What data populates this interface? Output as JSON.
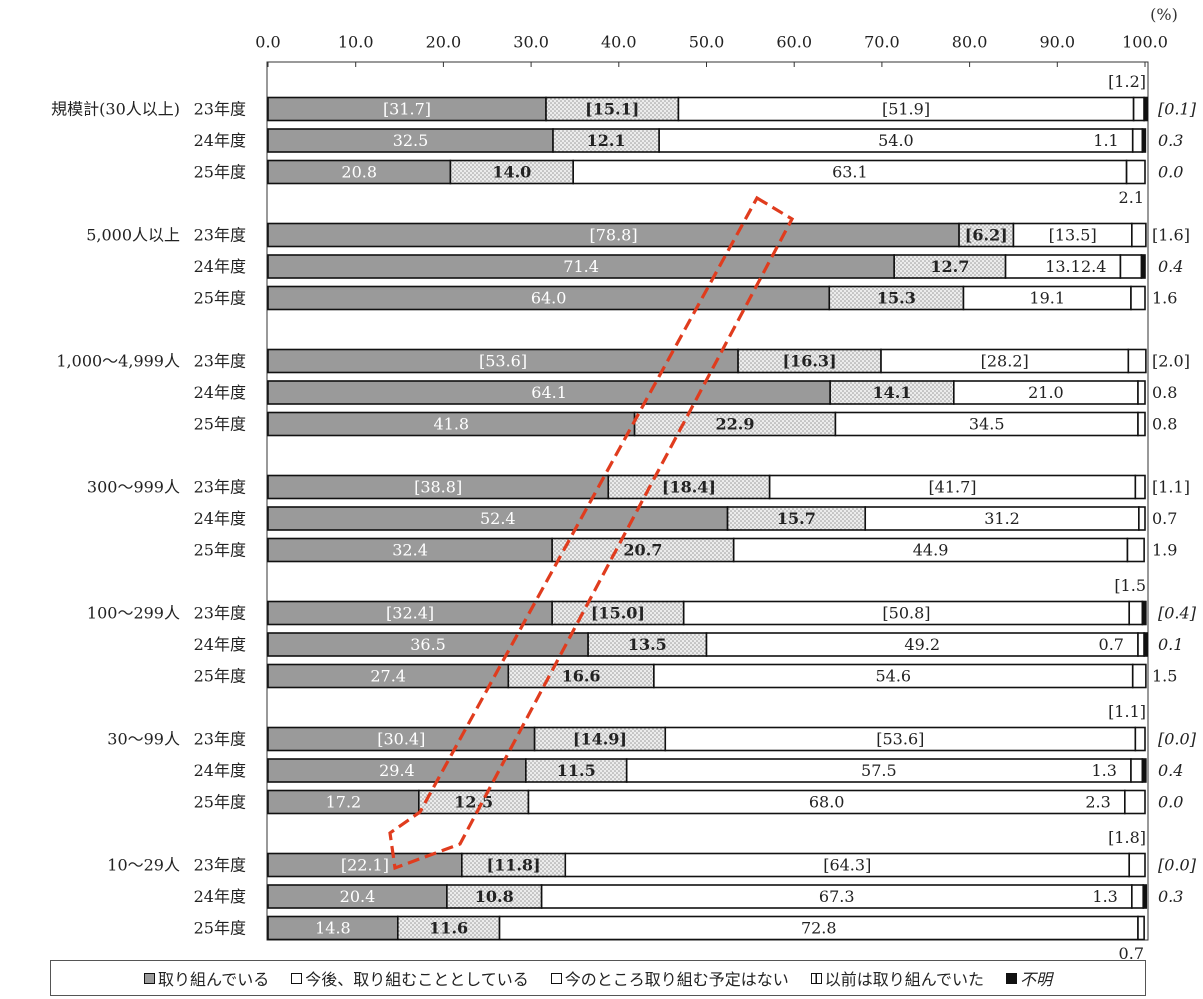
{
  "unit_label": "(%)",
  "colors": {
    "engaged": "#9a9a9a",
    "planning": "#dcdcdc",
    "no_plan": "#ffffff",
    "previously": "#ffffff",
    "unknown": "#111111",
    "arrow": "#e03c1e"
  },
  "legend": [
    {
      "key": "engaged",
      "label": "取り組んでいる",
      "italic": false
    },
    {
      "key": "planning",
      "label": "今後、取り組むこととしている",
      "italic": false
    },
    {
      "key": "no_plan",
      "label": "今のところ取り組む予定はない",
      "italic": false
    },
    {
      "key": "previously",
      "label": "以前は取り組んでいた",
      "italic": false
    },
    {
      "key": "unknown",
      "label": "不明",
      "italic": true
    }
  ],
  "chart_data": {
    "type": "bar",
    "orientation": "horizontal",
    "stacked": true,
    "xlim": [
      0,
      100
    ],
    "x_ticks": [
      "0.0",
      "10.0",
      "20.0",
      "30.0",
      "40.0",
      "50.0",
      "60.0",
      "70.0",
      "80.0",
      "90.0",
      "100.0"
    ],
    "series_names": [
      "取り組んでいる",
      "今後、取り組むこととしている",
      "今のところ取り組む予定はない",
      "以前は取り組んでいた",
      "不明"
    ],
    "groups": [
      {
        "name": "規模計(30人以上)",
        "rows": [
          {
            "year": "23年度",
            "engaged": 31.7,
            "planning": 15.1,
            "no_plan": 51.9,
            "previously": 1.2,
            "unknown": 0.1,
            "labels": {
              "engaged": "[31.7]",
              "planning": "[15.1]",
              "no_plan": "[51.9]",
              "previously": "[1.2]",
              "unknown": "[0.1]"
            },
            "prev_pos": "above",
            "unknown_italic": true
          },
          {
            "year": "24年度",
            "engaged": 32.5,
            "planning": 12.1,
            "no_plan": 54.0,
            "previously": 1.1,
            "unknown": 0.3,
            "labels": {
              "engaged": "32.5",
              "planning": "12.1",
              "no_plan": "54.0",
              "previously": "1.1",
              "unknown": "0.3"
            },
            "prev_pos": "inside",
            "unknown_italic": true
          },
          {
            "year": "25年度",
            "engaged": 20.8,
            "planning": 14.0,
            "no_plan": 63.1,
            "previously": 2.1,
            "unknown": 0.0,
            "labels": {
              "engaged": "20.8",
              "planning": "14.0",
              "no_plan": "63.1",
              "previously": "2.1",
              "unknown": "0.0"
            },
            "prev_pos": "below",
            "unknown_italic": true
          }
        ]
      },
      {
        "name": "5,000人以上",
        "rows": [
          {
            "year": "23年度",
            "engaged": 78.8,
            "planning": 6.2,
            "no_plan": 13.5,
            "previously": 1.6,
            "unknown": 0,
            "labels": {
              "engaged": "[78.8]",
              "planning": "[6.2]",
              "no_plan": "[13.5]",
              "previously": "[1.6]"
            },
            "prev_pos": "right",
            "unknown_italic": false
          },
          {
            "year": "24年度",
            "engaged": 71.4,
            "planning": 12.7,
            "no_plan": 13.1,
            "previously": 2.4,
            "unknown": 0.4,
            "labels": {
              "engaged": "71.4",
              "planning": "12.7",
              "no_plan": "13.1",
              "previously": "2.4",
              "unknown": "0.4"
            },
            "prev_pos": "inside",
            "unknown_italic": true
          },
          {
            "year": "25年度",
            "engaged": 64.0,
            "planning": 15.3,
            "no_plan": 19.1,
            "previously": 1.6,
            "unknown": 0,
            "labels": {
              "engaged": "64.0",
              "planning": "15.3",
              "no_plan": "19.1",
              "previously": "1.6"
            },
            "prev_pos": "right",
            "unknown_italic": false
          }
        ]
      },
      {
        "name": "1,000～4,999人",
        "rows": [
          {
            "year": "23年度",
            "engaged": 53.6,
            "planning": 16.3,
            "no_plan": 28.2,
            "previously": 2.0,
            "unknown": 0,
            "labels": {
              "engaged": "[53.6]",
              "planning": "[16.3]",
              "no_plan": "[28.2]",
              "previously": "[2.0]"
            },
            "prev_pos": "right",
            "unknown_italic": false
          },
          {
            "year": "24年度",
            "engaged": 64.1,
            "planning": 14.1,
            "no_plan": 21.0,
            "previously": 0.8,
            "unknown": 0,
            "labels": {
              "engaged": "64.1",
              "planning": "14.1",
              "no_plan": "21.0",
              "previously": "0.8"
            },
            "prev_pos": "right",
            "unknown_italic": false
          },
          {
            "year": "25年度",
            "engaged": 41.8,
            "planning": 22.9,
            "no_plan": 34.5,
            "previously": 0.8,
            "unknown": 0,
            "labels": {
              "engaged": "41.8",
              "planning": "22.9",
              "no_plan": "34.5",
              "previously": "0.8"
            },
            "prev_pos": "right",
            "unknown_italic": false
          }
        ]
      },
      {
        "name": "300～999人",
        "rows": [
          {
            "year": "23年度",
            "engaged": 38.8,
            "planning": 18.4,
            "no_plan": 41.7,
            "previously": 1.1,
            "unknown": 0,
            "labels": {
              "engaged": "[38.8]",
              "planning": "[18.4]",
              "no_plan": "[41.7]",
              "previously": "[1.1]"
            },
            "prev_pos": "right",
            "unknown_italic": false
          },
          {
            "year": "24年度",
            "engaged": 52.4,
            "planning": 15.7,
            "no_plan": 31.2,
            "previously": 0.7,
            "unknown": 0,
            "labels": {
              "engaged": "52.4",
              "planning": "15.7",
              "no_plan": "31.2",
              "previously": "0.7"
            },
            "prev_pos": "right",
            "unknown_italic": false
          },
          {
            "year": "25年度",
            "engaged": 32.4,
            "planning": 20.7,
            "no_plan": 44.9,
            "previously": 1.9,
            "unknown": 0,
            "labels": {
              "engaged": "32.4",
              "planning": "20.7",
              "no_plan": "44.9",
              "previously": "1.9"
            },
            "prev_pos": "right",
            "unknown_italic": false
          }
        ]
      },
      {
        "name": "100～299人",
        "rows": [
          {
            "year": "23年度",
            "engaged": 32.4,
            "planning": 15.0,
            "no_plan": 50.8,
            "previously": 1.5,
            "unknown": 0.4,
            "labels": {
              "engaged": "[32.4]",
              "planning": "[15.0]",
              "no_plan": "[50.8]",
              "previously": "[1.5",
              "unknown": "[0.4]"
            },
            "prev_pos": "above",
            "unknown_italic": true
          },
          {
            "year": "24年度",
            "engaged": 36.5,
            "planning": 13.5,
            "no_plan": 49.2,
            "previously": 0.7,
            "unknown": 0.1,
            "labels": {
              "engaged": "36.5",
              "planning": "13.5",
              "no_plan": "49.2",
              "previously": "0.7",
              "unknown": "0.1"
            },
            "prev_pos": "inside",
            "unknown_italic": true
          },
          {
            "year": "25年度",
            "engaged": 27.4,
            "planning": 16.6,
            "no_plan": 54.6,
            "previously": 1.5,
            "unknown": 0,
            "labels": {
              "engaged": "27.4",
              "planning": "16.6",
              "no_plan": "54.6",
              "previously": "1.5"
            },
            "prev_pos": "right",
            "unknown_italic": false
          }
        ]
      },
      {
        "name": "30～99人",
        "rows": [
          {
            "year": "23年度",
            "engaged": 30.4,
            "planning": 14.9,
            "no_plan": 53.6,
            "previously": 1.1,
            "unknown": 0.0,
            "labels": {
              "engaged": "[30.4]",
              "planning": "[14.9]",
              "no_plan": "[53.6]",
              "previously": "[1.1]",
              "unknown": "[0.0]"
            },
            "prev_pos": "above",
            "unknown_italic": true
          },
          {
            "year": "24年度",
            "engaged": 29.4,
            "planning": 11.5,
            "no_plan": 57.5,
            "previously": 1.3,
            "unknown": 0.4,
            "labels": {
              "engaged": "29.4",
              "planning": "11.5",
              "no_plan": "57.5",
              "previously": "1.3",
              "unknown": "0.4"
            },
            "prev_pos": "inside",
            "unknown_italic": true
          },
          {
            "year": "25年度",
            "engaged": 17.2,
            "planning": 12.5,
            "no_plan": 68.0,
            "previously": 2.3,
            "unknown": 0.0,
            "labels": {
              "engaged": "17.2",
              "planning": "12.5",
              "no_plan": "68.0",
              "previously": "2.3",
              "unknown": "0.0"
            },
            "prev_pos": "inside",
            "unknown_italic": true
          }
        ]
      },
      {
        "name": "10～29人",
        "rows": [
          {
            "year": "23年度",
            "engaged": 22.1,
            "planning": 11.8,
            "no_plan": 64.3,
            "previously": 1.8,
            "unknown": 0.0,
            "labels": {
              "engaged": "[22.1]",
              "planning": "[11.8]",
              "no_plan": "[64.3]",
              "previously": "[1.8]",
              "unknown": "[0.0]"
            },
            "prev_pos": "above",
            "unknown_italic": true
          },
          {
            "year": "24年度",
            "engaged": 20.4,
            "planning": 10.8,
            "no_plan": 67.3,
            "previously": 1.3,
            "unknown": 0.3,
            "labels": {
              "engaged": "20.4",
              "planning": "10.8",
              "no_plan": "67.3",
              "previously": "1.3",
              "unknown": "0.3"
            },
            "prev_pos": "inside",
            "unknown_italic": true
          },
          {
            "year": "25年度",
            "engaged": 14.8,
            "planning": 11.6,
            "no_plan": 72.8,
            "previously": 0.7,
            "unknown": 0,
            "labels": {
              "engaged": "14.8",
              "planning": "11.6",
              "no_plan": "72.8",
              "previously": "0.7"
            },
            "prev_pos": "below",
            "unknown_italic": false
          }
        ]
      }
    ]
  }
}
